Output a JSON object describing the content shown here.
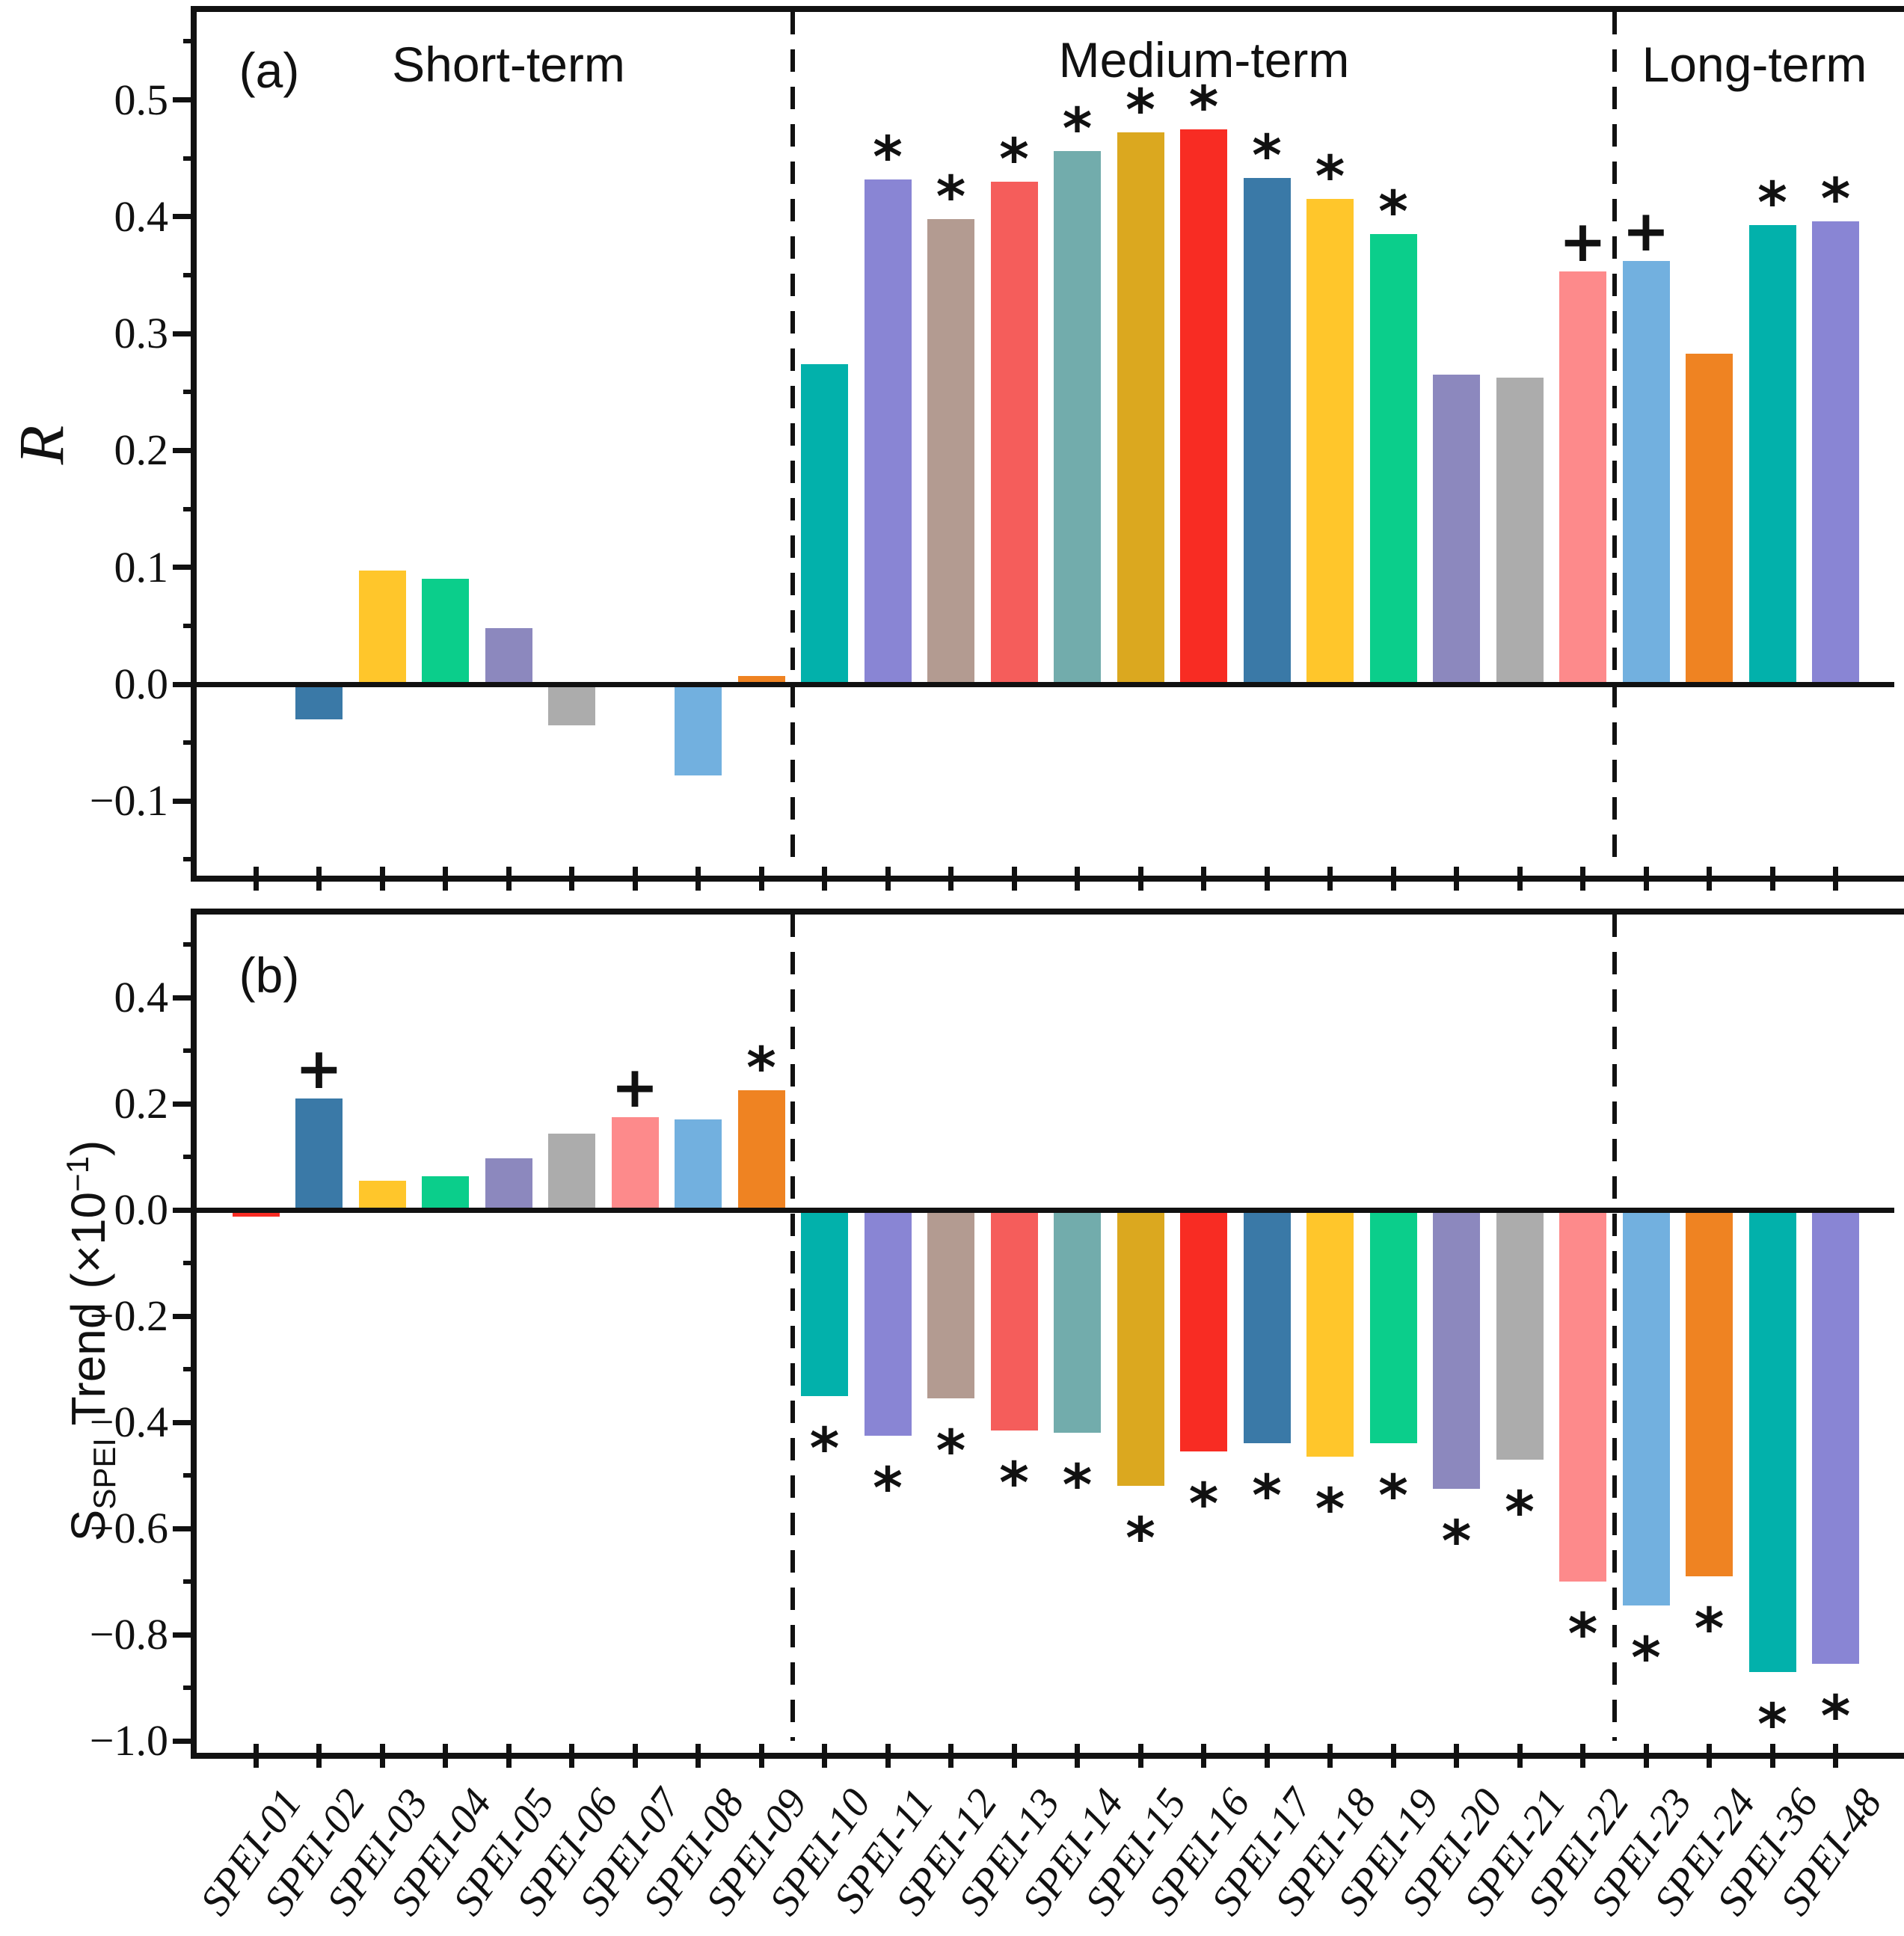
{
  "categories": [
    "SPEI-01",
    "SPEI-02",
    "SPEI-03",
    "SPEI-04",
    "SPEI-05",
    "SPEI-06",
    "SPEI-07",
    "SPEI-08",
    "SPEI-09",
    "SPEI-10",
    "SPEI-11",
    "SPEI-12",
    "SPEI-13",
    "SPEI-14",
    "SPEI-15",
    "SPEI-16",
    "SPEI-17",
    "SPEI-18",
    "SPEI-19",
    "SPEI-20",
    "SPEI-21",
    "SPEI-22",
    "SPEI-23",
    "SPEI-24",
    "SPEI-36",
    "SPEI-48"
  ],
  "sections": [
    {
      "label": "Short-term",
      "first_category": "SPEI-01",
      "last_category": "SPEI-09"
    },
    {
      "label": "Medium-term",
      "first_category": "SPEI-10",
      "last_category": "SPEI-22"
    },
    {
      "label": "Long-term",
      "first_category": "SPEI-23",
      "last_category": "SPEI-48"
    }
  ],
  "divider_after_categories": [
    "SPEI-09",
    "SPEI-22"
  ],
  "style": {
    "axis_color": "#111111",
    "background": "#ffffff",
    "bar_palette_cycle": [
      "#F82C23",
      "#3A79A7",
      "#FFC62B",
      "#0BCE8B",
      "#8C88BE",
      "#ACACAC",
      "#FD8A8B",
      "#72B0DF",
      "#EF8322",
      "#02B1AB",
      "#8985D4",
      "#B39B91",
      "#F55D5B",
      "#72ACAC",
      "#DBA81F"
    ],
    "significant_marker": "*",
    "marginal_marker": "+"
  },
  "chart_data": [
    {
      "id": "a",
      "panel_letter": "(a)",
      "type": "bar",
      "ylabel": "R",
      "ylim": [
        -0.155,
        0.575
      ],
      "grid": false,
      "legend": "none",
      "ytick_values": [
        0.5,
        0.4,
        0.3,
        0.2,
        0.1,
        0.0,
        -0.1
      ],
      "ytick_labels": [
        "0.5",
        "0.4",
        "0.3",
        "0.2",
        "0.1",
        "0.0",
        "−0.1"
      ],
      "minor_ytick_values": [
        0.55,
        0.45,
        0.35,
        0.25,
        0.15,
        0.05,
        -0.05,
        -0.15
      ],
      "categories": [
        "SPEI-01",
        "SPEI-02",
        "SPEI-03",
        "SPEI-04",
        "SPEI-05",
        "SPEI-06",
        "SPEI-07",
        "SPEI-08",
        "SPEI-09",
        "SPEI-10",
        "SPEI-11",
        "SPEI-12",
        "SPEI-13",
        "SPEI-14",
        "SPEI-15",
        "SPEI-16",
        "SPEI-17",
        "SPEI-18",
        "SPEI-19",
        "SPEI-20",
        "SPEI-21",
        "SPEI-22",
        "SPEI-23",
        "SPEI-24",
        "SPEI-36",
        "SPEI-48"
      ],
      "values": [
        0.0,
        -0.03,
        0.097,
        0.09,
        0.048,
        -0.035,
        0.0,
        -0.078,
        0.007,
        0.274,
        0.432,
        0.398,
        0.43,
        0.456,
        0.472,
        0.475,
        0.433,
        0.415,
        0.385,
        0.265,
        0.262,
        0.353,
        0.362,
        0.283,
        0.393,
        0.396
      ],
      "markers": [
        "",
        "",
        "",
        "",
        "",
        "",
        "",
        "",
        "",
        "",
        "*",
        "*",
        "*",
        "*",
        "*",
        "*",
        "*",
        "*",
        "*",
        "",
        "",
        "+",
        "+",
        "",
        "*",
        "*"
      ],
      "section_headers_shown": true
    },
    {
      "id": "b",
      "panel_letter": "(b)",
      "type": "bar",
      "ylabel_parts": {
        "main": "S",
        "sub": "SPEI",
        "mid": " Trend (×10",
        "sup": "−1",
        "end": ")"
      },
      "ylim": [
        -1.0,
        0.556
      ],
      "grid": false,
      "legend": "none",
      "ytick_values": [
        0.4,
        0.2,
        0.0,
        -0.2,
        -0.4,
        -0.6,
        -0.8,
        -1.0
      ],
      "ytick_labels": [
        "0.4",
        "0.2",
        "0.0",
        "−0.2",
        "−0.4",
        "−0.6",
        "−0.8",
        "−1.0"
      ],
      "minor_ytick_values": [
        0.5,
        0.3,
        0.1,
        -0.1,
        -0.3,
        -0.5,
        -0.7,
        -0.9
      ],
      "categories": [
        "SPEI-01",
        "SPEI-02",
        "SPEI-03",
        "SPEI-04",
        "SPEI-05",
        "SPEI-06",
        "SPEI-07",
        "SPEI-08",
        "SPEI-09",
        "SPEI-10",
        "SPEI-11",
        "SPEI-12",
        "SPEI-13",
        "SPEI-14",
        "SPEI-15",
        "SPEI-16",
        "SPEI-17",
        "SPEI-18",
        "SPEI-19",
        "SPEI-20",
        "SPEI-21",
        "SPEI-22",
        "SPEI-23",
        "SPEI-24",
        "SPEI-36",
        "SPEI-48"
      ],
      "values": [
        -0.012,
        0.21,
        0.055,
        0.063,
        0.097,
        0.143,
        0.175,
        0.17,
        0.225,
        -0.35,
        -0.425,
        -0.355,
        -0.415,
        -0.42,
        -0.52,
        -0.455,
        -0.44,
        -0.465,
        -0.44,
        -0.525,
        -0.47,
        -0.7,
        -0.745,
        -0.69,
        -0.87,
        -0.855
      ],
      "markers": [
        "",
        "+",
        "",
        "",
        "",
        "",
        "+",
        "",
        "*",
        "*",
        "*",
        "*",
        "*",
        "*",
        "*",
        "*",
        "*",
        "*",
        "*",
        "*",
        "*",
        "*",
        "*",
        "*",
        "*",
        "*"
      ],
      "section_headers_shown": false
    }
  ]
}
